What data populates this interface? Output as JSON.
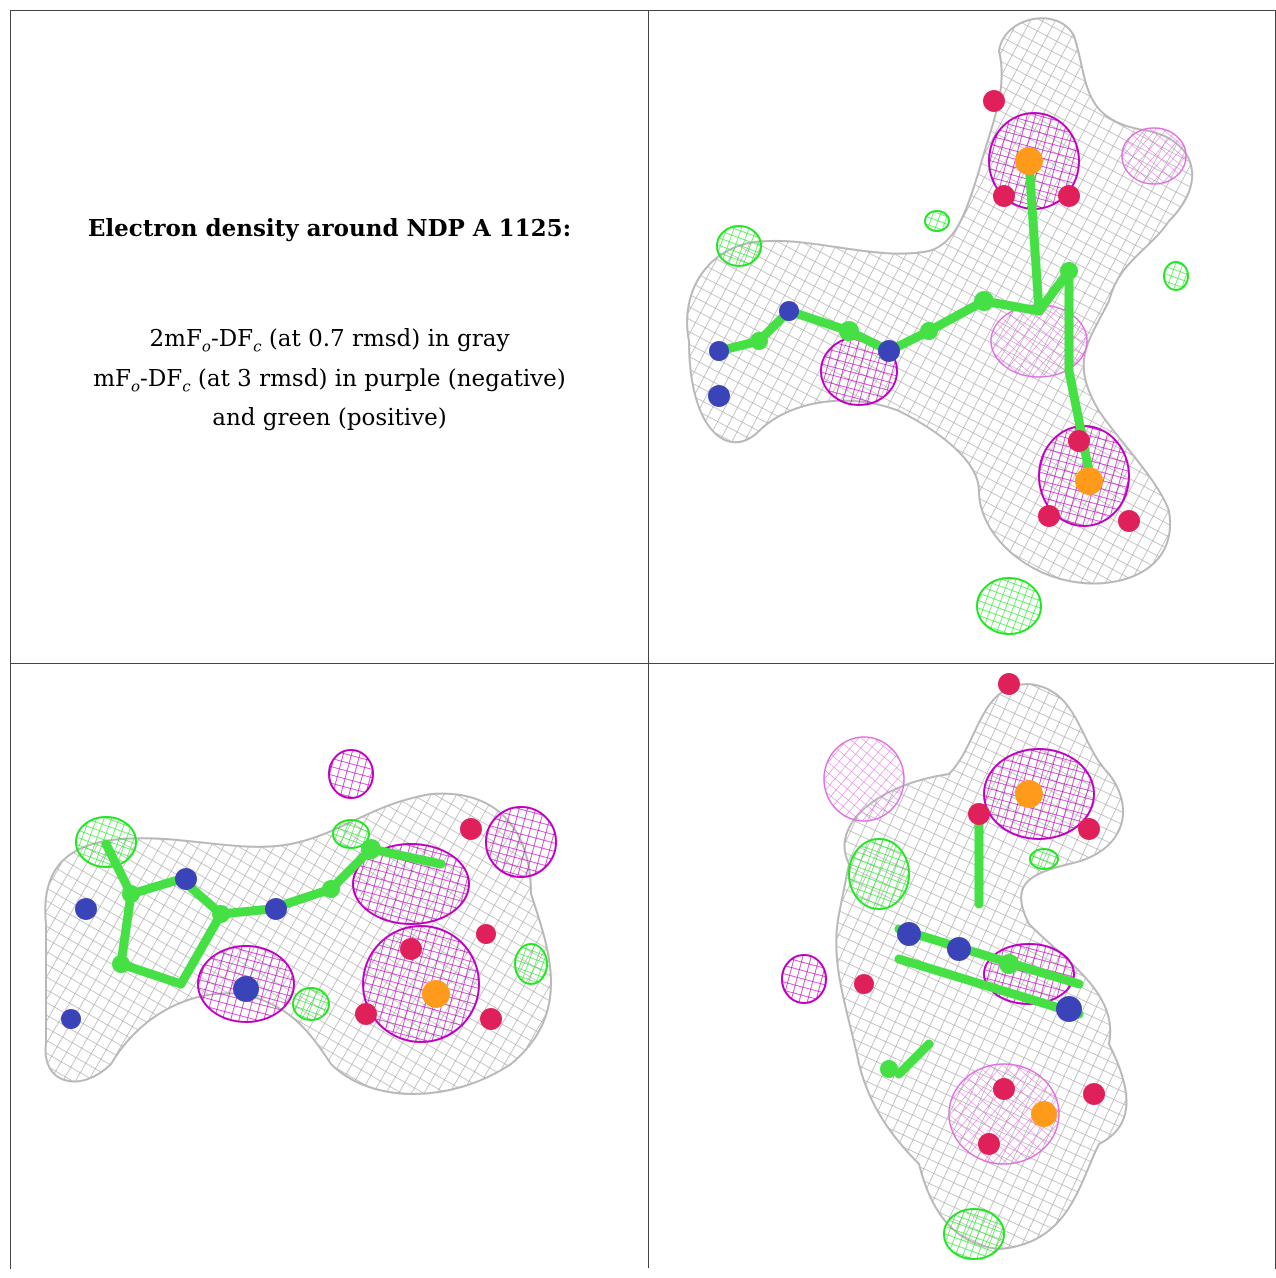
{
  "panel_text": {
    "title": "Electron density around NDP A 1125:",
    "line1_pre": "2mF",
    "line1_sub1": "o",
    "line1_mid": "-DF",
    "line1_sub2": "c",
    "line1_post": " (at 0.7 rmsd) in gray",
    "line2_pre": "mF",
    "line2_sub1": "o",
    "line2_mid": "-DF",
    "line2_sub2": "c",
    "line2_post": " (at 3 rmsd) in purple (negative)",
    "line3": "and green (positive)"
  },
  "colors": {
    "mesh_gray": "#a8a8a8",
    "mesh_negative": "#c000c0",
    "mesh_negative_light": "#e070e0",
    "mesh_positive": "#22e622",
    "atom_carbon": "#44e044",
    "atom_nitrogen": "#3a44b8",
    "atom_oxygen": "#e0205a",
    "atom_phosphorus": "#ff9a1a"
  },
  "icons": [
    "density-map-view-1",
    "density-map-view-2",
    "density-map-view-3"
  ]
}
